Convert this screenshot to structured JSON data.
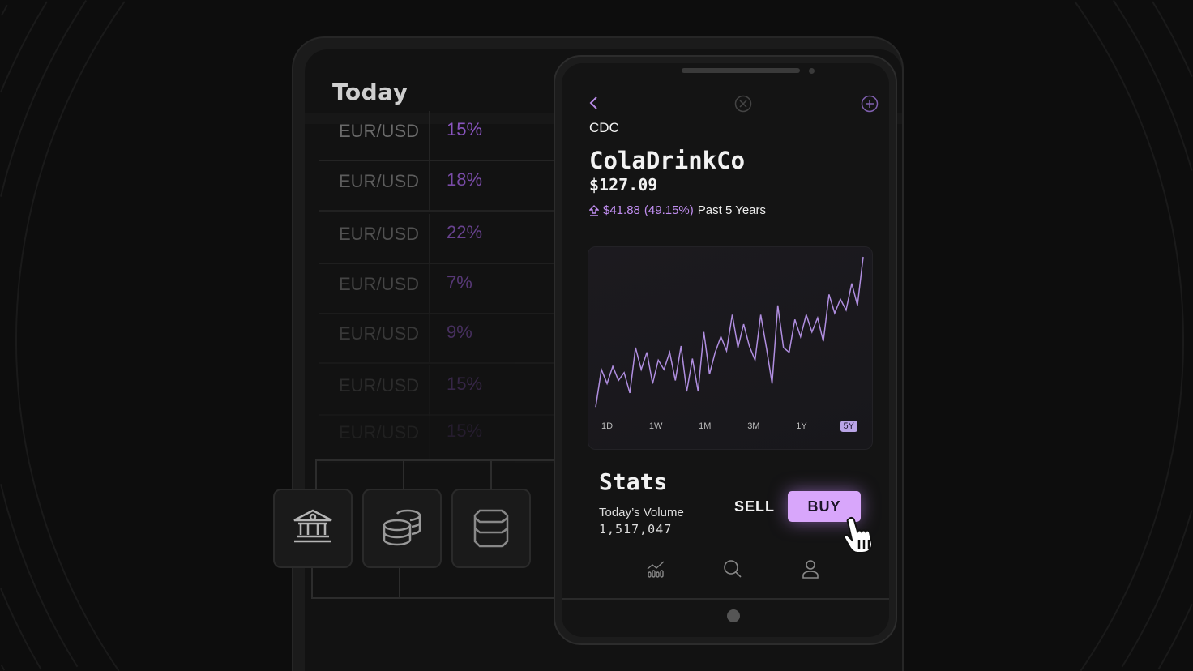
{
  "background_tablet": {
    "title": "Today",
    "rows": [
      {
        "pair": "EUR/USD",
        "percent": "15%"
      },
      {
        "pair": "EUR/USD",
        "percent": "18%"
      },
      {
        "pair": "EUR/USD",
        "percent": "22%"
      },
      {
        "pair": "EUR/USD",
        "percent": "7%"
      },
      {
        "pair": "EUR/USD",
        "percent": "9%"
      },
      {
        "pair": "EUR/USD",
        "percent": "15%"
      },
      {
        "pair": "EUR/USD",
        "percent": "15%"
      }
    ],
    "icon_cards": [
      "bank-icon",
      "coins-icon",
      "database-icon"
    ]
  },
  "phone": {
    "header_icons": [
      "chevron-left-icon",
      "close-circle-icon",
      "plus-circle-icon"
    ],
    "ticker": "CDC",
    "company": "ColaDrinkCo",
    "price": "$127.09",
    "change": {
      "amount": "$41.88",
      "percent": "(49.15%)",
      "period": "Past 5 Years",
      "direction": "up"
    },
    "ranges": [
      "1D",
      "1W",
      "1M",
      "3M",
      "1Y",
      "5Y"
    ],
    "active_range": "5Y",
    "stats_title": "Stats",
    "volume_label": "Today’s Volume",
    "volume_value": "1,517,047",
    "sell_label": "SELL",
    "buy_label": "BUY",
    "nav_icons": [
      "chart-icon",
      "search-icon",
      "user-icon"
    ]
  },
  "colors": {
    "accent": "#d8a6fb",
    "line": "#b08ee0",
    "percent": "#8a55c0",
    "background": "#0d0d0d"
  },
  "chart_data": {
    "type": "line",
    "title": "",
    "xlabel": "",
    "ylabel": "",
    "grid": false,
    "values": [
      4,
      28,
      19,
      30,
      21,
      26,
      13,
      42,
      28,
      39,
      19,
      34,
      28,
      39,
      21,
      43,
      14,
      35,
      14,
      52,
      25,
      39,
      49,
      40,
      63,
      42,
      57,
      43,
      34,
      63,
      42,
      19,
      69,
      42,
      39,
      60,
      49,
      63,
      52,
      61,
      46,
      76,
      64,
      73,
      66,
      83,
      69,
      100
    ]
  }
}
